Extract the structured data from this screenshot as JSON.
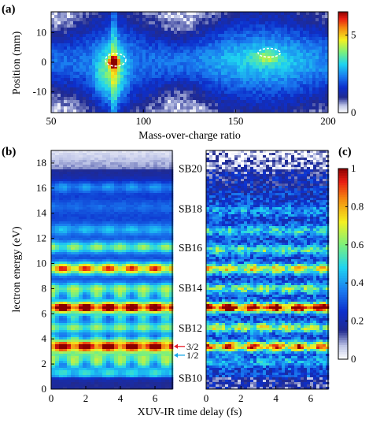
{
  "chart_data": [
    {
      "panel": "(a)",
      "type": "heatmap",
      "xlabel": "Mass-over-charge ratio",
      "ylabel": "Position (mm)",
      "xlim": [
        50,
        200
      ],
      "ylim": [
        -17,
        17
      ],
      "xticks": [
        50,
        100,
        150,
        200
      ],
      "yticks": [
        10,
        0,
        -10
      ],
      "colorbar": {
        "min": 0,
        "max": 6.5,
        "ticks": [
          5,
          0
        ]
      },
      "features": [
        {
          "shape": "ellipse-dashed",
          "x": 84,
          "y": 0
        },
        {
          "shape": "ellipse-dashed",
          "x": 167,
          "y": 1.5
        }
      ]
    },
    {
      "panel": "(b)",
      "type": "heatmap",
      "xlabel": "XUV-IR time delay (fs)",
      "ylabel": "lectron energy (eV)",
      "xlim": [
        0,
        7
      ],
      "ylim": [
        0,
        19
      ],
      "xticks": [
        0,
        2,
        4,
        6
      ],
      "yticks": [
        0,
        2,
        4,
        6,
        8,
        10,
        12,
        14,
        16,
        18
      ],
      "bands": [
        1.3,
        2.5,
        3.4,
        4.9,
        6.5,
        8.0,
        9.6,
        11.3,
        12.7,
        14.5,
        16.1
      ]
    },
    {
      "panel": "(c)",
      "type": "heatmap",
      "xlabel": "XUV-IR time delay (fs)",
      "xlim": [
        0,
        7
      ],
      "ylim": [
        0,
        19
      ],
      "xticks": [
        0,
        2,
        4,
        6
      ],
      "colorbar": {
        "min": 0,
        "max": 1,
        "ticks": [
          1,
          0.8,
          0.6,
          0.4,
          0.2,
          0
        ]
      },
      "bands": [
        2.2,
        3.4,
        4.9,
        6.5,
        8.0,
        9.6,
        11.1,
        12.6,
        14.2
      ]
    }
  ],
  "sidebands": [
    {
      "label": "SB20",
      "energy": 17.6
    },
    {
      "label": "SB18",
      "energy": 14.4
    },
    {
      "label": "SB16",
      "energy": 11.3
    },
    {
      "label": "SB14",
      "energy": 8.1
    },
    {
      "label": "SB12",
      "energy": 4.9
    },
    {
      "label": "SB10",
      "energy": 0.9
    }
  ],
  "markers": [
    {
      "label": "3/2",
      "energy": 3.4,
      "color": "#e8202a"
    },
    {
      "label": "1/2",
      "energy": 2.7,
      "color": "#1aa8e8"
    }
  ],
  "colormap": [
    [
      0.0,
      "#ffffff"
    ],
    [
      0.07,
      "#bcc3e6"
    ],
    [
      0.15,
      "#202a90"
    ],
    [
      0.25,
      "#0d2fcc"
    ],
    [
      0.36,
      "#1a7cf0"
    ],
    [
      0.48,
      "#1fd4f0"
    ],
    [
      0.6,
      "#7cf07c"
    ],
    [
      0.72,
      "#f4f020"
    ],
    [
      0.84,
      "#f48a10"
    ],
    [
      0.93,
      "#e81e12"
    ],
    [
      1.0,
      "#8a0000"
    ]
  ]
}
